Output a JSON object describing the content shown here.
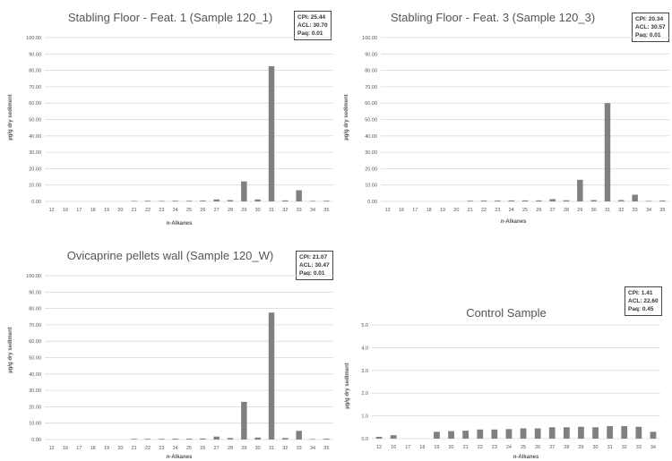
{
  "chart_data": [
    {
      "type": "bar",
      "title": "Stabling Floor - Feat. 1 (Sample 120_1)",
      "stats": [
        "CPI: 25.44",
        "ACL: 30.70",
        "Paq: 0.01"
      ],
      "ylabel": "µg/g dry sediment",
      "xlabel_prefix": "n",
      "xlabel_suffix": "-Alkanes",
      "ylim": [
        0,
        100
      ],
      "yticks": [
        "0.00",
        "10.00",
        "20.00",
        "30.00",
        "40.00",
        "50.00",
        "60.00",
        "70.00",
        "80.00",
        "90.00",
        "100.00"
      ],
      "categories": [
        "12",
        "16",
        "17",
        "18",
        "19",
        "20",
        "21",
        "22",
        "23",
        "24",
        "25",
        "26",
        "27",
        "28",
        "29",
        "30",
        "31",
        "32",
        "33",
        "34",
        "35"
      ],
      "values": [
        0,
        0,
        0,
        0,
        0,
        0,
        0.3,
        0.4,
        0.3,
        0.4,
        0.4,
        0.5,
        1.2,
        0.8,
        12.2,
        1.2,
        82.5,
        0.6,
        6.8,
        0.3,
        0.4
      ],
      "grid": true
    },
    {
      "type": "bar",
      "title": "Stabling Floor - Feat. 3 (Sample 120_3)",
      "stats": [
        "CPI: 20.34",
        "ACL: 30.57",
        "Paq: 0.01"
      ],
      "ylabel": "µg/g dry sediment",
      "xlabel_prefix": "n",
      "xlabel_suffix": "-Alkanes",
      "ylim": [
        0,
        100
      ],
      "yticks": [
        "0.00",
        "10.00",
        "20.00",
        "30.00",
        "40.00",
        "50.00",
        "60.00",
        "70.00",
        "80.00",
        "90.00",
        "100.00"
      ],
      "categories": [
        "12",
        "16",
        "17",
        "18",
        "19",
        "20",
        "21",
        "22",
        "23",
        "24",
        "25",
        "26",
        "27",
        "28",
        "29",
        "30",
        "31",
        "32",
        "33",
        "34",
        "35"
      ],
      "values": [
        0,
        0,
        0,
        0,
        0,
        0,
        0.4,
        0.5,
        0.5,
        0.6,
        0.6,
        0.6,
        1.4,
        0.7,
        13.2,
        0.8,
        60.0,
        0.8,
        4.1,
        0.3,
        0.5
      ],
      "grid": true
    },
    {
      "type": "bar",
      "title": "Ovicaprine pellets wall (Sample 120_W)",
      "stats": [
        "CPI: 21.07",
        "ACL: 30.47",
        "Paq: 0.01"
      ],
      "ylabel": "µg/g dry sediment",
      "xlabel_prefix": "n",
      "xlabel_suffix": "-Alkanes",
      "ylim": [
        0,
        100
      ],
      "yticks": [
        "0.00",
        "10.00",
        "20.00",
        "30.00",
        "40.00",
        "50.00",
        "60.00",
        "70.00",
        "80.00",
        "90.00",
        "100.00"
      ],
      "categories": [
        "12",
        "16",
        "17",
        "18",
        "19",
        "20",
        "21",
        "22",
        "23",
        "24",
        "25",
        "26",
        "27",
        "28",
        "29",
        "30",
        "31",
        "32",
        "33",
        "34",
        "35"
      ],
      "values": [
        0,
        0,
        0,
        0,
        0,
        0,
        0.4,
        0.4,
        0.4,
        0.5,
        0.5,
        0.6,
        1.8,
        0.9,
        23.0,
        1.2,
        77.5,
        0.9,
        5.3,
        0.3,
        0.5
      ],
      "grid": true
    },
    {
      "type": "bar",
      "title": "Control Sample",
      "stats": [
        "CPI: 1.41",
        "ACL: 22.60",
        "Paq: 0.45"
      ],
      "ylabel": "µg/g dry sediment",
      "xlabel_prefix": "n",
      "xlabel_suffix": "-Alkanes",
      "ylim": [
        0,
        5
      ],
      "yticks": [
        "0.0",
        "1.0",
        "2.0",
        "3.0",
        "4.0",
        "5.0"
      ],
      "categories": [
        "12",
        "16",
        "17",
        "18",
        "19",
        "20",
        "21",
        "22",
        "23",
        "24",
        "25",
        "26",
        "27",
        "28",
        "29",
        "30",
        "31",
        "32",
        "33",
        "34"
      ],
      "values": [
        0.08,
        0.15,
        0,
        0,
        0.3,
        0.33,
        0.35,
        0.4,
        0.4,
        0.42,
        0.45,
        0.45,
        0.5,
        0.5,
        0.52,
        0.5,
        0.55,
        0.55,
        0.52,
        0.3
      ],
      "grid": true
    }
  ]
}
